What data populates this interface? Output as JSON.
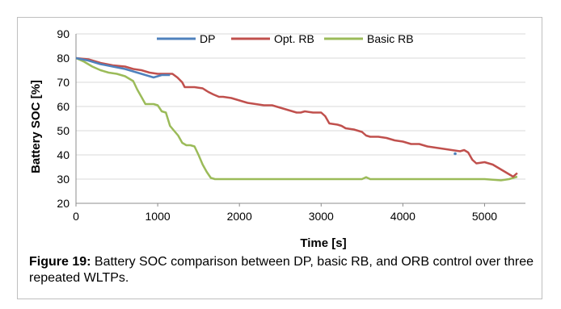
{
  "chart_data": {
    "type": "line",
    "xlabel": "Time [s]",
    "ylabel": "Battery SOC [%]",
    "xlim": [
      0,
      5500
    ],
    "ylim": [
      20,
      90
    ],
    "x_ticks": [
      0,
      1000,
      2000,
      3000,
      4000,
      5000
    ],
    "y_ticks": [
      20,
      30,
      40,
      50,
      60,
      70,
      80,
      90
    ],
    "grid": "horizontal",
    "legend_position": "top",
    "series": [
      {
        "name": "DP",
        "color": "#4f81bd",
        "x": [
          0,
          150,
          300,
          450,
          600,
          700,
          800,
          900,
          950,
          1000,
          1050,
          1100,
          1150
        ],
        "y": [
          80,
          79,
          77.5,
          76.5,
          75.5,
          74.5,
          73.5,
          72.5,
          72,
          72.5,
          73,
          73,
          73
        ],
        "extra_points": [
          {
            "x": 4640,
            "y": 40.5
          }
        ]
      },
      {
        "name": "Opt. RB",
        "color": "#c0504d",
        "x": [
          0,
          150,
          300,
          450,
          600,
          700,
          800,
          900,
          1000,
          1100,
          1180,
          1240,
          1300,
          1330,
          1370,
          1450,
          1550,
          1620,
          1680,
          1750,
          1800,
          1900,
          2000,
          2050,
          2100,
          2200,
          2300,
          2400,
          2500,
          2600,
          2700,
          2750,
          2800,
          2900,
          3000,
          3050,
          3100,
          3200,
          3250,
          3300,
          3400,
          3500,
          3550,
          3600,
          3700,
          3800,
          3900,
          4000,
          4100,
          4200,
          4300,
          4400,
          4500,
          4600,
          4700,
          4750,
          4800,
          4850,
          4900,
          5000,
          5100,
          5200,
          5300,
          5350,
          5400
        ],
        "y": [
          80,
          79.5,
          78,
          77,
          76.5,
          75.5,
          75,
          74,
          73.5,
          73.5,
          73.5,
          72,
          70,
          68,
          68,
          68,
          67.5,
          66,
          65,
          64,
          64,
          63.5,
          62.5,
          62,
          61.5,
          61,
          60.5,
          60.5,
          59.5,
          58.5,
          57.5,
          57.5,
          58,
          57.5,
          57.5,
          56,
          53,
          52.5,
          52,
          51,
          50.5,
          49.5,
          48,
          47.5,
          47.5,
          47,
          46,
          45.5,
          44.5,
          44.5,
          43.5,
          43,
          42.5,
          42,
          41.5,
          42,
          41,
          38,
          36.5,
          37,
          36,
          34,
          32,
          31,
          32.5
        ]
      },
      {
        "name": "Basic RB",
        "color": "#9bbb59",
        "x": [
          0,
          100,
          200,
          300,
          400,
          500,
          550,
          600,
          700,
          750,
          800,
          850,
          900,
          950,
          1000,
          1050,
          1100,
          1150,
          1200,
          1250,
          1300,
          1350,
          1400,
          1450,
          1500,
          1550,
          1600,
          1650,
          1700,
          1800,
          1900,
          2000,
          2500,
          3000,
          3500,
          3550,
          3600,
          4000,
          4500,
          5000,
          5200,
          5300,
          5400
        ],
        "y": [
          80,
          78.5,
          76.5,
          75,
          74,
          73.5,
          73,
          72.5,
          70.5,
          67,
          64,
          61,
          61,
          61,
          60.5,
          58,
          57.5,
          52,
          50,
          48,
          45,
          44,
          44,
          43.5,
          40,
          36,
          33,
          30.5,
          30,
          30,
          30,
          30,
          30,
          30,
          30,
          30.8,
          30,
          30,
          30,
          30,
          29.5,
          30,
          31
        ]
      }
    ]
  },
  "caption": {
    "lead": "Figure 19:",
    "text": " Battery SOC comparison between DP, basic RB, and ORB control over three repeated WLTPs."
  }
}
